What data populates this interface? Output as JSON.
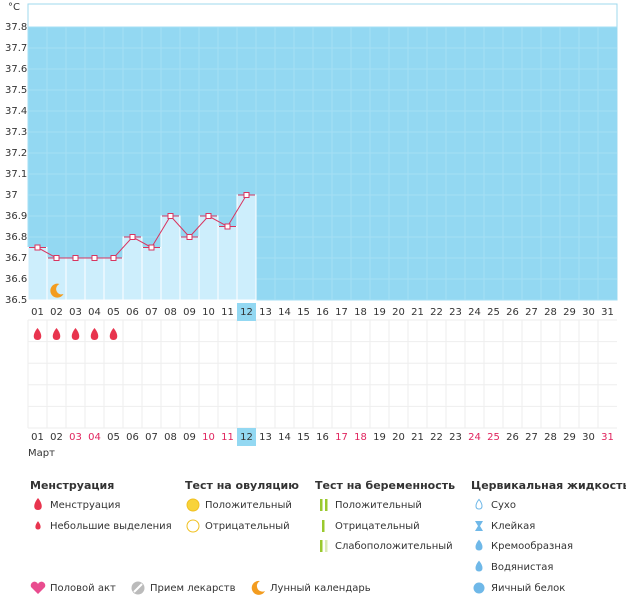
{
  "chart_data": {
    "type": "line",
    "unit": "°C",
    "categories": [
      "01",
      "02",
      "03",
      "04",
      "05",
      "06",
      "07",
      "08",
      "09",
      "10",
      "11",
      "12",
      "13",
      "14",
      "15",
      "16",
      "17",
      "18",
      "19",
      "20",
      "21",
      "22",
      "23",
      "24",
      "25",
      "26",
      "27",
      "28",
      "29",
      "30",
      "31"
    ],
    "values": [
      36.75,
      36.7,
      36.7,
      36.7,
      36.7,
      36.8,
      36.75,
      36.9,
      36.8,
      36.9,
      36.85,
      37.0,
      null,
      null,
      null,
      null,
      null,
      null,
      null,
      null,
      null,
      null,
      null,
      null,
      null,
      null,
      null,
      null,
      null,
      null,
      null
    ],
    "color": "#d8345f",
    "ylim": [
      36.5,
      37.8
    ],
    "yticks": [
      36.5,
      36.6,
      36.7,
      36.8,
      36.9,
      37,
      37.1,
      37.2,
      37.3,
      37.4,
      37.5,
      37.6,
      37.7,
      37.8
    ],
    "today": 12,
    "moon_day": 2,
    "menstruation_days": [
      1,
      2,
      3,
      4,
      5
    ],
    "weekend_days": [
      3,
      4,
      10,
      11,
      17,
      18,
      24,
      25,
      31
    ],
    "month": "Март"
  },
  "legend": {
    "sections": [
      {
        "title": "Менструация",
        "items": [
          "Менструация",
          "Небольшие выделения"
        ]
      },
      {
        "title": "Тест на овуляцию",
        "items": [
          "Положительный",
          "Отрицательный"
        ]
      },
      {
        "title": "Тест на беременность",
        "items": [
          "Положительный",
          "Отрицательный",
          "Слабоположительный"
        ]
      },
      {
        "title": "Цервикальная жидкость",
        "items": [
          "Сухо",
          "Клейкая",
          "Кремообразная",
          "Водянистая",
          "Яичный белок"
        ]
      }
    ],
    "extra": [
      "Половой акт",
      "Прием лекарств",
      "Лунный календарь"
    ]
  }
}
